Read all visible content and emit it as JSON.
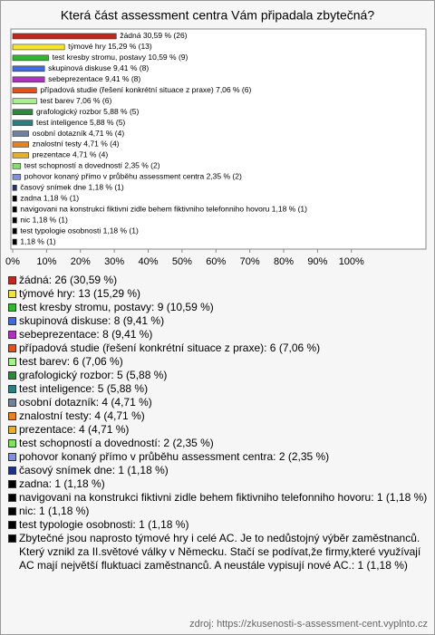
{
  "chart_data": {
    "type": "hbar",
    "title": "Která část assessment centra Vám připadala zbytečná?",
    "values": [
      30.59,
      15.29,
      10.59,
      9.41,
      9.41,
      7.06,
      7.06,
      5.88,
      5.88,
      4.71,
      4.71,
      4.71,
      2.35,
      2.35,
      1.18,
      1.18,
      1.18,
      1.18,
      1.18,
      1.18
    ],
    "value_labels": [
      "žádná 30,59 % (26)",
      "týmové hry 15,29 % (13)",
      "test kresby stromu, postavy 10,59 % (9)",
      "skupinová diskuse 9,41 % (8)",
      "sebeprezentace 9,41 % (8)",
      "případová studie (řešení konkrétní situace z praxe) 7,06 % (6)",
      "test barev 7,06 % (6)",
      "grafologický rozbor 5,88 % (5)",
      "test inteligence 5,88 % (5)",
      "osobní dotazník 4,71 % (4)",
      "znalostní testy 4,71 % (4)",
      "prezentace 4,71 % (4)",
      "test schopností a dovedností 2,35 % (2)",
      "pohovor konaný přímo v průběhu assessment centra 2,35 % (2)",
      "časový snímek dne 1,18 % (1)",
      "zadna 1,18 % (1)",
      "navigovani na konstrukci fiktivni zidle behem fiktivniho telefonniho hovoru 1,18 % (1)",
      "nic 1,18 % (1)",
      "test typologie osobnosti 1,18 % (1)",
      "1,18 % (1)"
    ],
    "legend_labels": [
      "žádná: 26 (30,59 %)",
      "týmové hry: 13 (15,29 %)",
      "test kresby stromu, postavy: 9 (10,59 %)",
      "skupinová diskuse: 8 (9,41 %)",
      "sebeprezentace: 8 (9,41 %)",
      "případová studie (řešení konkrétní situace z praxe): 6 (7,06 %)",
      "test barev: 6 (7,06 %)",
      "grafologický rozbor: 5 (5,88 %)",
      "test inteligence: 5 (5,88 %)",
      "osobní dotazník: 4 (4,71 %)",
      "znalostní testy: 4 (4,71 %)",
      "prezentace: 4 (4,71 %)",
      "test schopností a dovedností: 2 (2,35 %)",
      "pohovor konaný přímo v průběhu assessment centra: 2 (2,35 %)",
      "časový snímek dne: 1 (1,18 %)",
      "zadna: 1 (1,18 %)",
      "navigovani na konstrukci fiktivni zidle behem fiktivniho telefonniho hovoru: 1 (1,18 %)",
      "nic: 1 (1,18 %)",
      "test typologie osobnosti: 1 (1,18 %)",
      "Zbytečné jsou naprosto týmové hry i celé AC. Je to nedůstojný výběr zaměstnanců. Který vznikl za II.světové války v Německu. Stačí se podívat,že firmy,které využívají AC mají největší fluktuaci zaměstnanců. A neustále vypisují nové AC.: 1 (1,18 %)"
    ],
    "colors": [
      "#c0281e",
      "#f5e52a",
      "#2eb82e",
      "#4169e1",
      "#b030c0",
      "#e8501a",
      "#a8f08a",
      "#2a8a3a",
      "#2a7f7f",
      "#7080a0",
      "#e88020",
      "#e8b020",
      "#80e060",
      "#8090e0",
      "#203080",
      "#000000",
      "#000000",
      "#000000",
      "#000000",
      "#000000"
    ],
    "xlim": [
      0,
      122
    ],
    "xticks": [
      {
        "value": 0,
        "label": "0%"
      },
      {
        "value": 10,
        "label": "10%"
      },
      {
        "value": 20,
        "label": "20%"
      },
      {
        "value": 30,
        "label": "30%"
      },
      {
        "value": 40,
        "label": "40%"
      },
      {
        "value": 50,
        "label": "50%"
      },
      {
        "value": 60,
        "label": "60%"
      },
      {
        "value": 70,
        "label": "70%"
      },
      {
        "value": 80,
        "label": "80%"
      },
      {
        "value": 90,
        "label": "90%"
      },
      {
        "value": 100,
        "label": "100%"
      }
    ],
    "source": "zdroj: https://zkusenosti-s-assessment-cent.vyplnto.cz"
  }
}
